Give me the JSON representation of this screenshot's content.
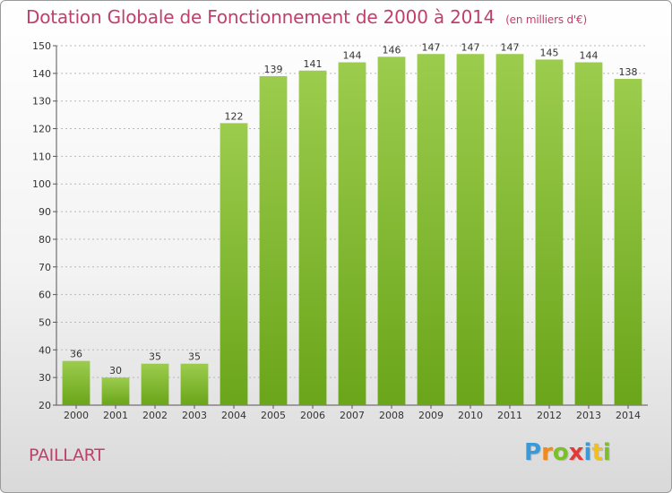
{
  "title": "Dotation Globale de Fonctionnement de 2000 à 2014",
  "subtitle": "(en milliers d'€)",
  "commune": "PAILLART",
  "logo": {
    "letters": [
      "P",
      "r",
      "o",
      "x",
      "i",
      "t",
      "i"
    ],
    "colors": [
      "#3a9ad9",
      "#f08a1c",
      "#7bbf2a",
      "#e03a3a",
      "#3a9ad9",
      "#f0c020",
      "#7bbf2a"
    ]
  },
  "colors": {
    "bar_top": "#9ccc4d",
    "bar_bottom": "#6aa51a",
    "title": "#c0406a",
    "grid": "#b8b8b8"
  },
  "chart_data": {
    "type": "bar",
    "categories": [
      "2000",
      "2001",
      "2002",
      "2003",
      "2004",
      "2005",
      "2006",
      "2007",
      "2008",
      "2009",
      "2010",
      "2011",
      "2012",
      "2013",
      "2014"
    ],
    "values": [
      36,
      30,
      35,
      35,
      122,
      139,
      141,
      144,
      146,
      147,
      147,
      147,
      145,
      144,
      138
    ],
    "title": "Dotation Globale de Fonctionnement de 2000 à 2014",
    "subtitle": "(en milliers d'€)",
    "xlabel": "",
    "ylabel": "",
    "ylim": [
      20,
      150
    ],
    "yticks": [
      20,
      30,
      40,
      50,
      60,
      70,
      80,
      90,
      100,
      110,
      120,
      130,
      140,
      150
    ],
    "grid": true,
    "legend": "none"
  }
}
